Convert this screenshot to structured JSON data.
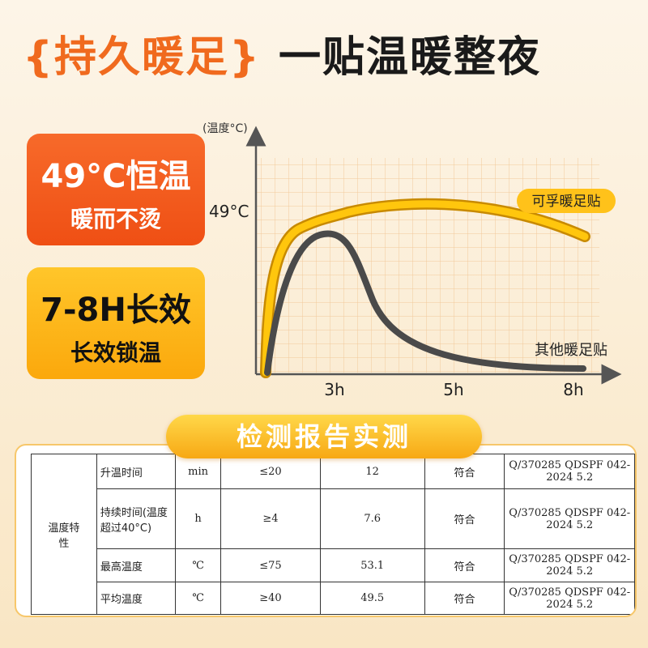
{
  "headline": {
    "bracketed": "{持久暖足}",
    "main": "一贴温暖整夜"
  },
  "badges": [
    {
      "title": "49°C恒温",
      "subtitle": "暖而不烫"
    },
    {
      "title": "7-8H长效",
      "subtitle": "长效锁温"
    }
  ],
  "chart": {
    "y_axis_label": "(温度°C)",
    "y_tick": "49°C",
    "x_ticks": [
      "3h",
      "5h",
      "8h"
    ],
    "series_labels": [
      "可孚暖足贴",
      "其他暖足贴"
    ]
  },
  "report": {
    "title": "检测报告实测",
    "group": "温度特性",
    "rows": [
      [
        "升温时间",
        "min",
        "≤20",
        "12",
        "符合",
        "Q/370285 QDSPF 042-2024 5.2"
      ],
      [
        "持续时间(温度超过40°C)",
        "h",
        "≥4",
        "7.6",
        "符合",
        "Q/370285 QDSPF 042-2024 5.2"
      ],
      [
        "最高温度",
        "℃",
        "≤75",
        "53.1",
        "符合",
        "Q/370285 QDSPF 042-2024 5.2"
      ],
      [
        "平均温度",
        "℃",
        "≥40",
        "49.5",
        "符合",
        "Q/370285 QDSPF 042-2024 5.2"
      ]
    ]
  }
}
